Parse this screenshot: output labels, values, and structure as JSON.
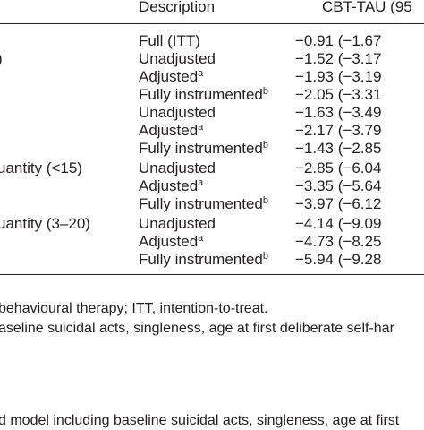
{
  "table": {
    "header": [
      "Description",
      "CBT-TAU (95"
    ],
    "rows": [
      {
        "description": "Full (ITT)",
        "value": "−0.91 (−1.67"
      },
      {
        "label": ")",
        "description": "Unadjusted",
        "value": "−1.52 (−3.17"
      },
      {
        "description": "Adjusted",
        "sup": "a",
        "value": "−1.93 (−3.19"
      },
      {
        "description": "Fully instrumented",
        "sup": "b",
        "value": "−2.05 (−3.31"
      },
      {
        "description": "Unadjusted",
        "value": "−1.63 (−3.49"
      },
      {
        "description": "Adjusted",
        "sup": "a",
        "value": "−2.17 (−3.79"
      },
      {
        "description": "Fully instrumented",
        "sup": "b",
        "value": "−1.43 (−2.85"
      },
      {
        "label": "uantity (<15)",
        "description": "Unadjusted",
        "value": "−2.85 (−6.04"
      },
      {
        "description": "Adjusted",
        "sup": "a",
        "value": "−3.35 (−5.64"
      },
      {
        "description": "Fully instrumented",
        "sup": "b",
        "value": "−3.97 (−6.12"
      },
      {
        "label": "uantity (3–20)",
        "description": "Unadjusted",
        "value": "−4.14 (−9.09"
      },
      {
        "description": "Adjusted",
        "sup": "a",
        "value": "−4.73 (−8.25"
      },
      {
        "description": "Fully instrumented",
        "sup": "b",
        "value": "−5.94 (−9.28"
      }
    ]
  },
  "notes": [
    "behavioural therapy; ITT, intention-to-treat.",
    "aseline suicidal acts, singleness, age at first deliberate self-har",
    "d model including baseline suicidal acts, singleness, age at first"
  ]
}
